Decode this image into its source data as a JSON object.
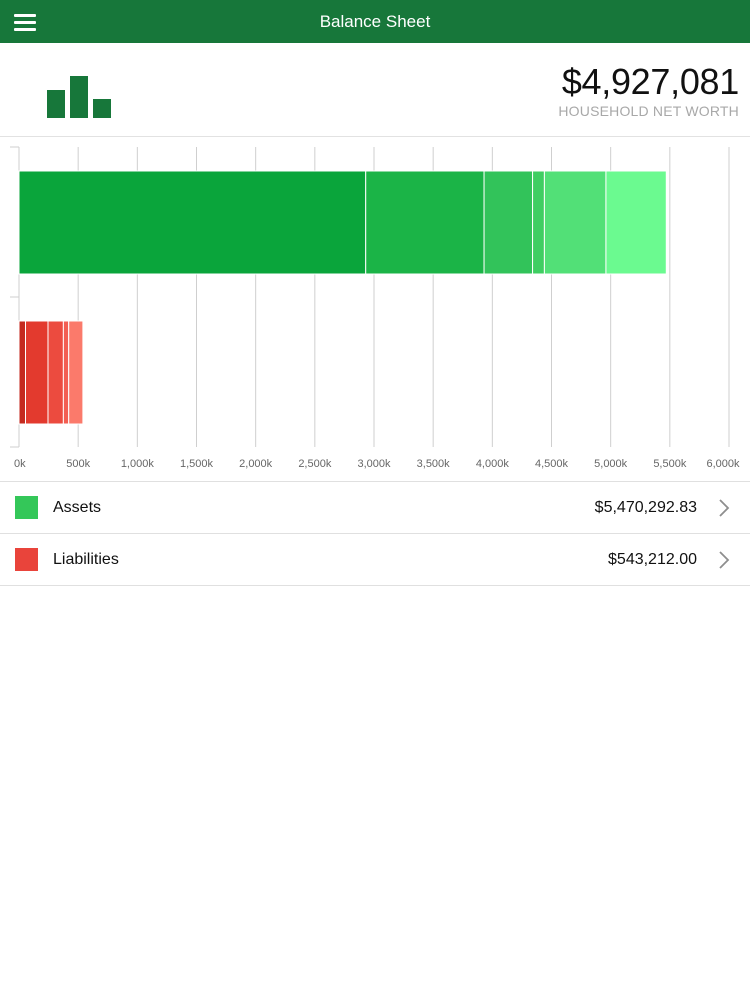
{
  "header": {
    "title": "Balance Sheet",
    "menu_icon": "hamburger-menu-icon",
    "background": "#17773a"
  },
  "summary": {
    "logo_icon": "bar-chart-logo-icon",
    "net_worth": "$4,927,081",
    "net_worth_label": "HOUSEHOLD NET WORTH"
  },
  "chart_data": {
    "type": "bar",
    "orientation": "horizontal",
    "stacked": true,
    "xlim": [
      0,
      6000
    ],
    "x_unit": "k",
    "x_ticks": [
      "0k",
      "500k",
      "1,000k",
      "1,500k",
      "2,000k",
      "2,500k",
      "3,000k",
      "3,500k",
      "4,000k",
      "4,500k",
      "5,000k",
      "5,500k",
      "6,000k"
    ],
    "x_tick_values": [
      0,
      500,
      1000,
      1500,
      2000,
      2500,
      3000,
      3500,
      4000,
      4500,
      5000,
      5500,
      6000
    ],
    "grid": true,
    "bars": [
      {
        "category": "Assets",
        "segments": [
          {
            "value": 2930,
            "color": "#0aa53b"
          },
          {
            "value": 1000,
            "color": "#1bb447"
          },
          {
            "value": 410,
            "color": "#32c35a"
          },
          {
            "value": 100,
            "color": "#3fce62"
          },
          {
            "value": 520,
            "color": "#52e077"
          },
          {
            "value": 510,
            "color": "#6bfa90"
          }
        ]
      },
      {
        "category": "Liabilities",
        "segments": [
          {
            "value": 55,
            "color": "#c52a1f"
          },
          {
            "value": 190,
            "color": "#e33a2e"
          },
          {
            "value": 130,
            "color": "#ec4b3f"
          },
          {
            "value": 45,
            "color": "#f35e52"
          },
          {
            "value": 120,
            "color": "#fb7a6b"
          }
        ]
      }
    ]
  },
  "list": {
    "items": [
      {
        "label": "Assets",
        "value": "$5,470,292.83",
        "color": "#34c759",
        "icon": "chevron-right-icon"
      },
      {
        "label": "Liabilities",
        "value": "$543,212.00",
        "color": "#e9443b",
        "icon": "chevron-right-icon"
      }
    ]
  }
}
